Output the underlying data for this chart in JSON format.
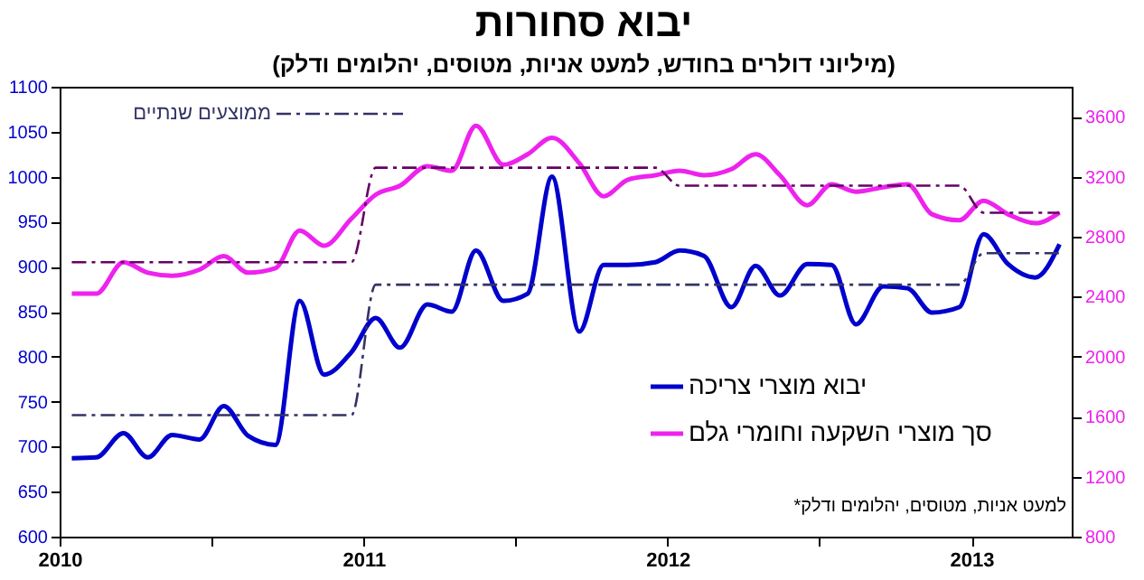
{
  "chart_data": {
    "type": "line",
    "title": "יבוא סחורות",
    "subtitle": "(מיליוני דולרים בחודש, למעט אניות, מטוסים, יהלומים ודלק)",
    "annotations": [
      "*למעט אניות, מטוסים, יהלומים ודלק"
    ],
    "x": [
      2010.04,
      2010.12,
      2010.21,
      2010.29,
      2010.37,
      2010.46,
      2010.54,
      2010.62,
      2010.71,
      2010.79,
      2010.87,
      2010.96,
      2011.04,
      2011.12,
      2011.21,
      2011.29,
      2011.37,
      2011.46,
      2011.54,
      2011.62,
      2011.71,
      2011.79,
      2011.87,
      2011.96,
      2012.04,
      2012.12,
      2012.21,
      2012.29,
      2012.37,
      2012.46,
      2012.54,
      2012.62,
      2012.71,
      2012.79,
      2012.87,
      2012.96,
      2013.04,
      2013.12,
      2013.21,
      2013.29
    ],
    "series": [
      {
        "name": "יבוא מוצרי צריכה",
        "color": "#0000cc",
        "values": [
          687,
          688,
          715,
          688,
          713,
          708,
          745,
          712,
          702,
          862,
          780,
          805,
          843,
          810,
          858,
          850,
          918,
          862,
          870,
          1000,
          828,
          902,
          902,
          905,
          918,
          912,
          855,
          901,
          868,
          903,
          902,
          836,
          878,
          876,
          849,
          855,
          936,
          903,
          888,
          925
        ]
      },
      {
        "name": "סך מוצרי השקעה וחומרי גלם",
        "color": "#ee22ee",
        "axis": "y2",
        "values": [
          2420,
          2420,
          2630,
          2560,
          2540,
          2580,
          2670,
          2560,
          2590,
          2840,
          2740,
          2920,
          3080,
          3140,
          3270,
          3240,
          3540,
          3280,
          3350,
          3460,
          3290,
          3070,
          3180,
          3210,
          3240,
          3210,
          3250,
          3350,
          3210,
          3010,
          3150,
          3100,
          3130,
          3150,
          2950,
          2910,
          3040,
          2950,
          2890,
          2960
        ]
      },
      {
        "name": "ממוצעים שנתיים",
        "color": "#333366",
        "type": "line",
        "line_style": "dashed",
        "x": [
          2010.04,
          2010.96,
          2011.04,
          2012.96,
          2013.04,
          2013.29
        ],
        "values": [
          735,
          735,
          880,
          880,
          915,
          915
        ]
      },
      {
        "color": "#660066",
        "type": "line",
        "line_style": "dashed",
        "axis": "y2",
        "x": [
          2010.04,
          2010.96,
          2011.04,
          2011.96,
          2012.04,
          2012.96,
          2013.04,
          2013.29
        ],
        "values": [
          2630,
          2630,
          3260,
          3260,
          3140,
          3140,
          2960,
          2960
        ]
      }
    ],
    "xlim": [
      2010,
      2013.33
    ],
    "xticks": [
      2010,
      {
        "value": 2010.5,
        "label": null
      },
      2011,
      {
        "value": 2011.5,
        "label": null
      },
      2012,
      {
        "value": 2012.5,
        "label": null
      },
      2013
    ],
    "ylim": [
      600,
      1100
    ],
    "yticks": [
      600,
      650,
      700,
      750,
      800,
      850,
      900,
      950,
      1000,
      1050,
      1100
    ],
    "y2lim": [
      800,
      3800
    ],
    "y2ticks": [
      800,
      1200,
      1600,
      2000,
      2400,
      2800,
      3200,
      3600
    ],
    "legend": "bottom right"
  }
}
